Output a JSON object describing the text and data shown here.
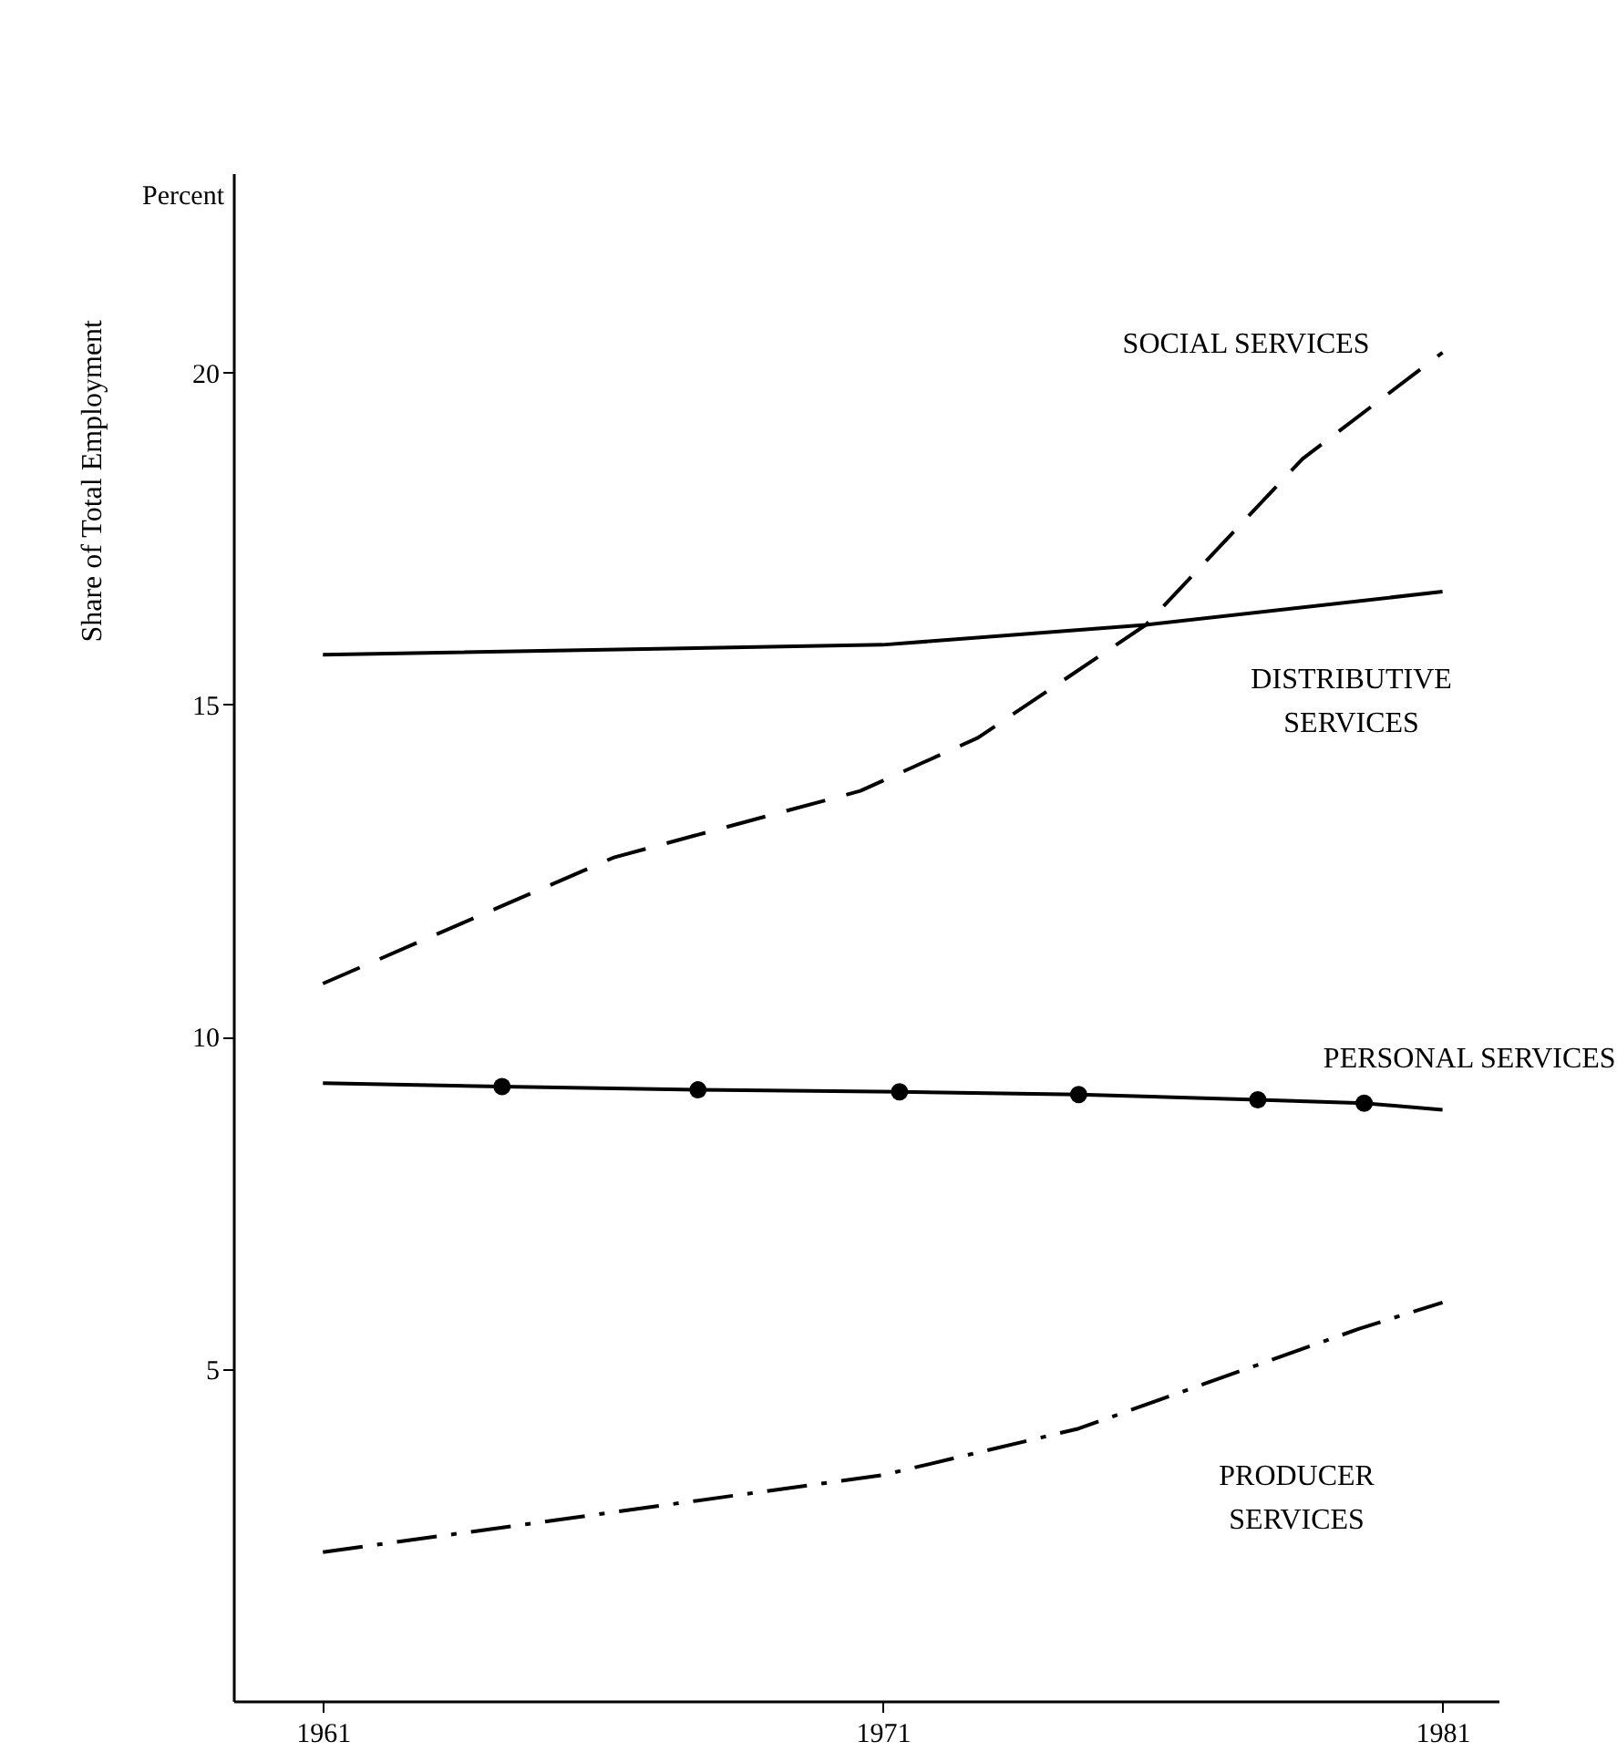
{
  "chart_data": {
    "type": "line",
    "ylabel": "Share of Total Employment",
    "annotations": [
      "Percent"
    ],
    "xlim": [
      1959.4,
      1982
    ],
    "xticks": [
      1961,
      1971,
      1981
    ],
    "ylim": [
      0,
      23
    ],
    "yticks": [
      5,
      10,
      15,
      20
    ],
    "grid": false,
    "series": [
      {
        "name": "SOCIAL SERVICES",
        "color": "#000000",
        "line_style": "dashed",
        "x": [
          1961,
          1966.2,
          1970.6,
          1972.7,
          1975.7,
          1978.5,
          1981
        ],
        "values": [
          10.8,
          12.7,
          13.7,
          14.5,
          16.2,
          18.7,
          20.3
        ]
      },
      {
        "name": "DISTRIBUTIVE SERVICES",
        "color": "#000000",
        "line_style": "solid",
        "x": [
          1961,
          1971,
          1975.7,
          1981
        ],
        "values": [
          15.75,
          15.9,
          16.2,
          16.7
        ]
      },
      {
        "name": "PERSONAL SERVICES",
        "color": "#000000",
        "line_style": "solid",
        "x": [
          1961,
          1964.2,
          1967.7,
          1971.3,
          1974.5,
          1977.7,
          1979.6,
          1981
        ],
        "values": [
          9.3,
          9.25,
          9.2,
          9.17,
          9.13,
          9.05,
          9.0,
          8.9
        ]
      },
      {
        "type": "scatter",
        "color": "#000000",
        "marker": "circle",
        "x": [
          1964.2,
          1967.7,
          1971.3,
          1974.5,
          1977.7,
          1979.6
        ],
        "values": [
          9.25,
          9.2,
          9.17,
          9.13,
          9.05,
          9.0
        ]
      },
      {
        "name": "PRODUCER SERVICES",
        "color": "#000000",
        "line_style": "dashdot",
        "x": [
          1961,
          1971,
          1974.5,
          1979.5,
          1981
        ],
        "values": [
          2.24,
          3.4,
          4.1,
          5.6,
          6.0
        ]
      }
    ]
  }
}
